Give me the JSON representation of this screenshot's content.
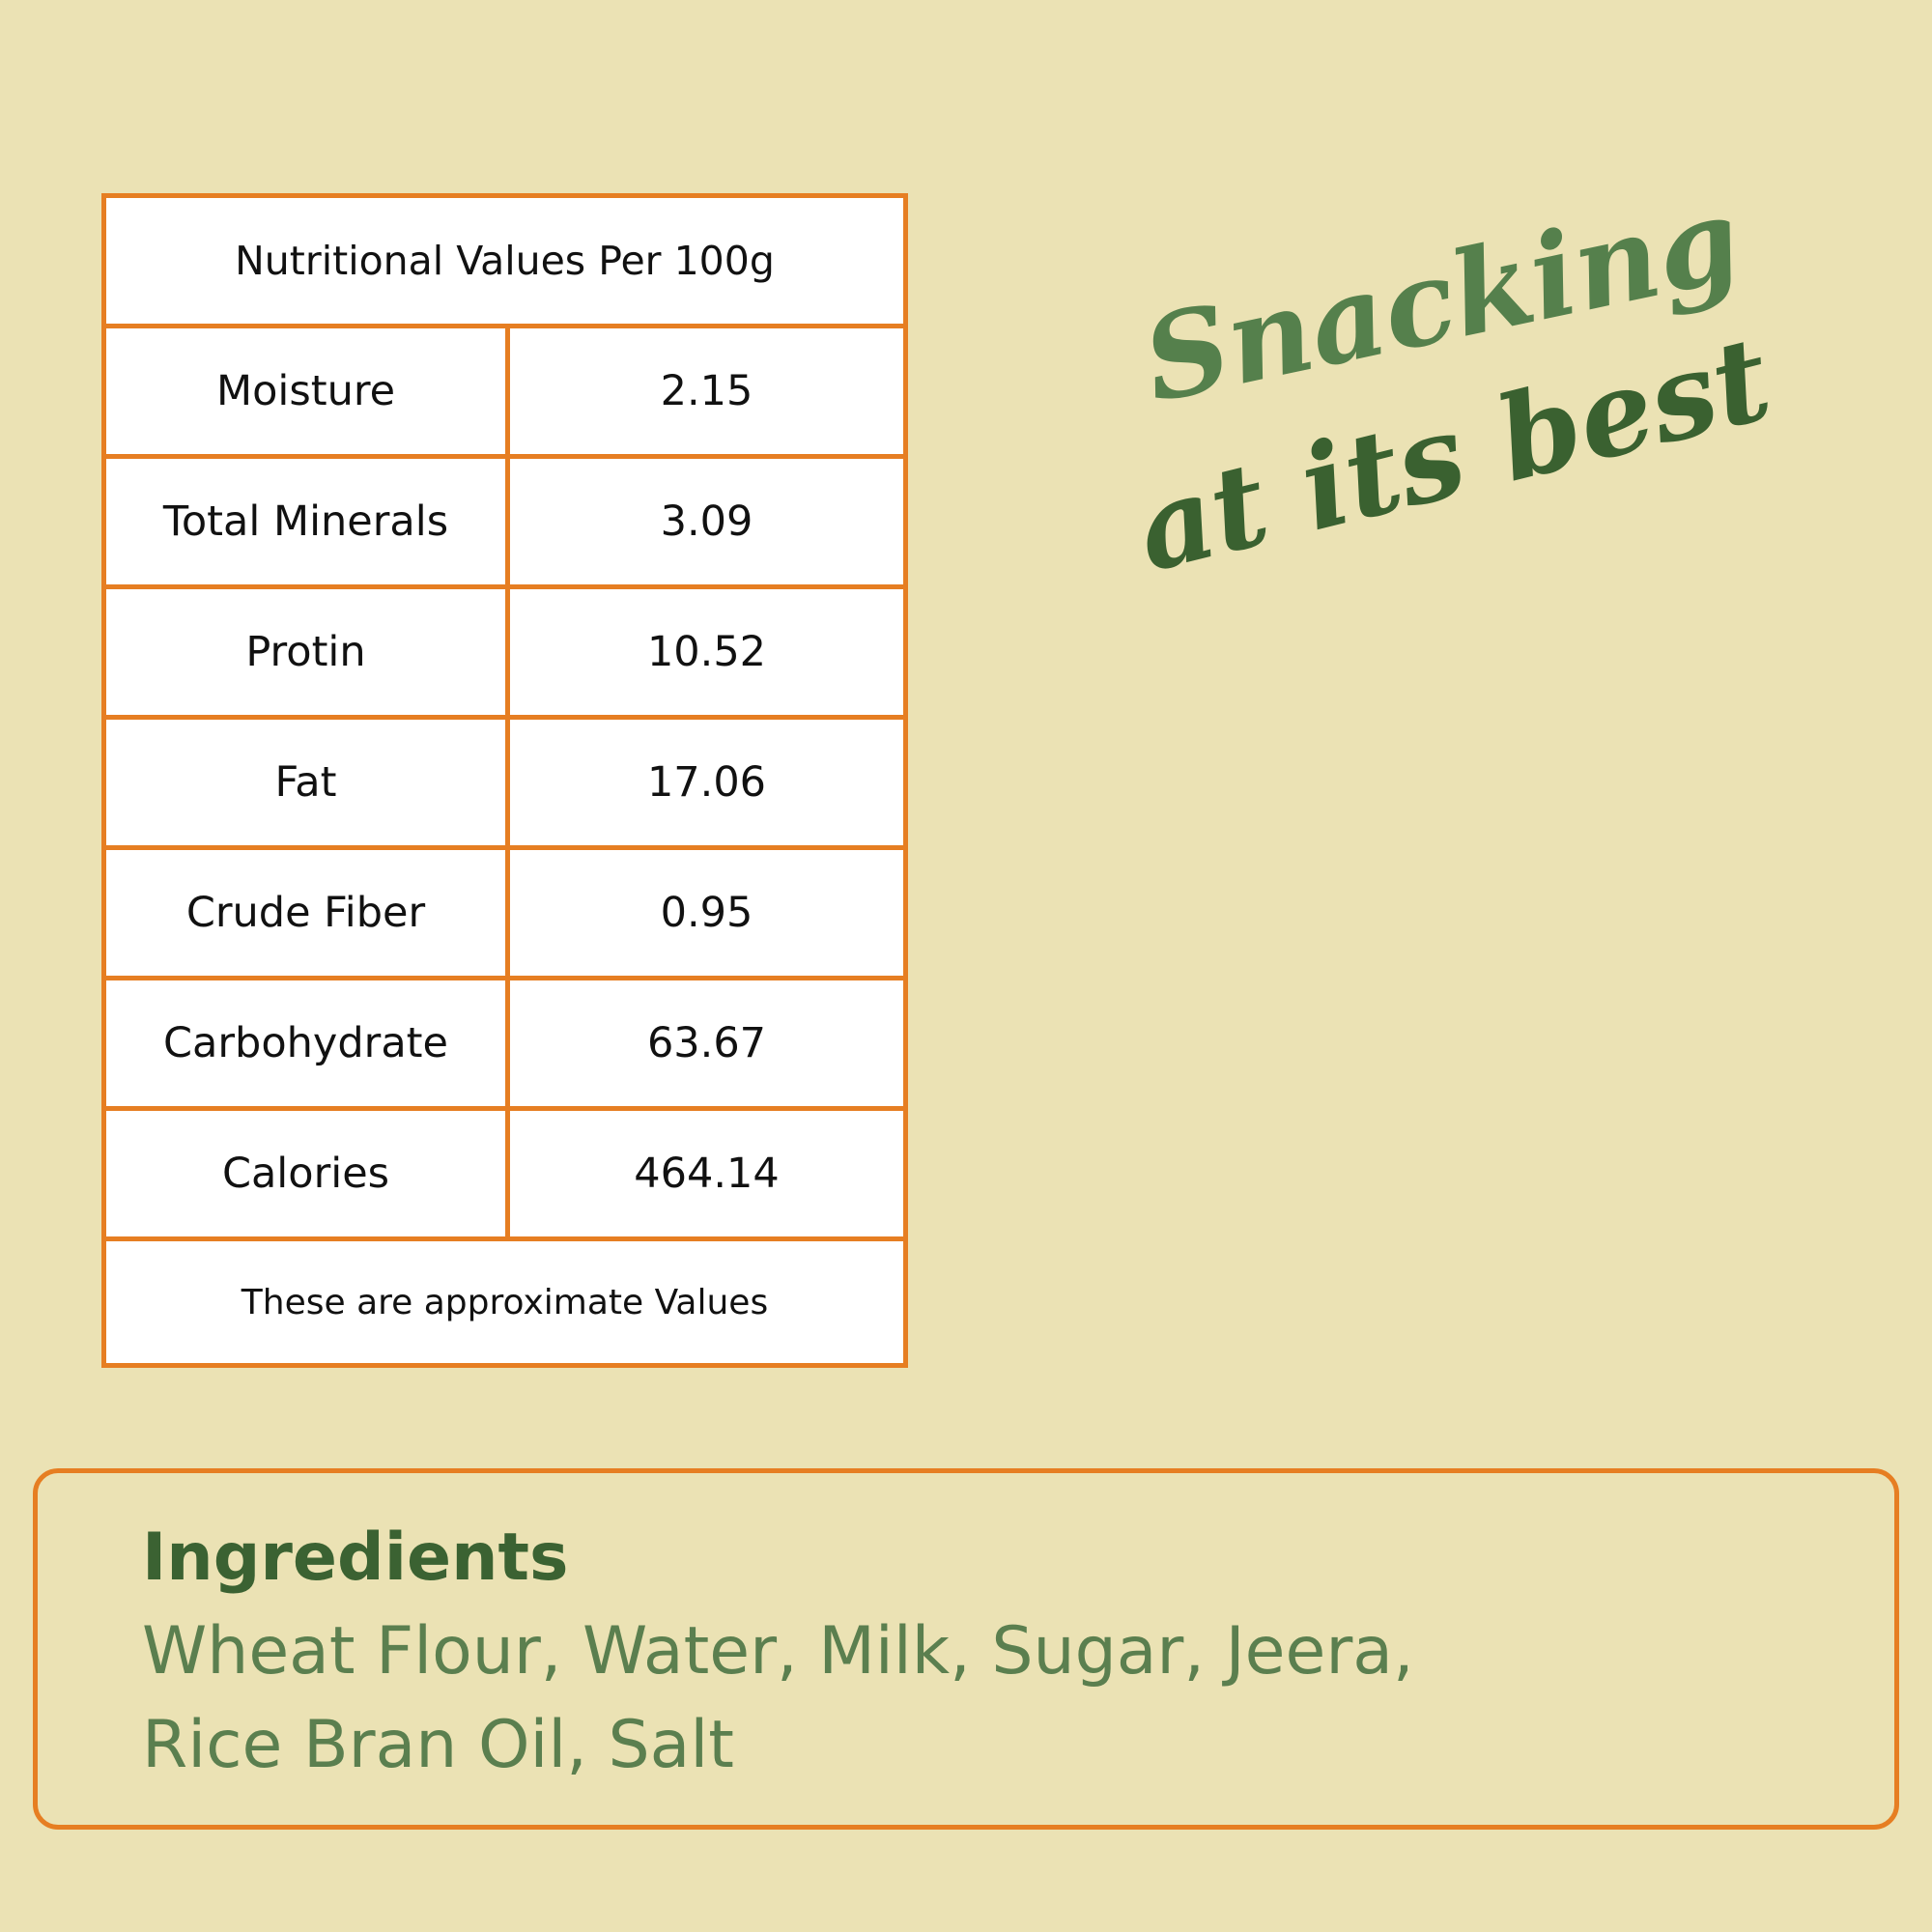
{
  "table": {
    "title": "Nutritional Values Per 100g",
    "rows": [
      {
        "label": "Moisture",
        "value": "2.15"
      },
      {
        "label": "Total Minerals",
        "value": "3.09"
      },
      {
        "label": "Protin",
        "value": "10.52"
      },
      {
        "label": "Fat",
        "value": "17.06"
      },
      {
        "label": "Crude Fiber",
        "value": "0.95"
      },
      {
        "label": "Carbohydrate",
        "value": "63.67"
      },
      {
        "label": "Calories",
        "value": "464.14"
      }
    ],
    "footnote": "These are approximate Values"
  },
  "slogan": {
    "line1": "Snacking",
    "line2": "at its best"
  },
  "ingredients": {
    "title": "Ingredients",
    "line1": "Wheat Flour, Water, Milk, Sugar, Jeera,",
    "line2": "Rice Bran Oil, Salt"
  },
  "colors": {
    "background": "#ebe2b4",
    "accent": "#e67e22",
    "green": "#3b6232"
  }
}
